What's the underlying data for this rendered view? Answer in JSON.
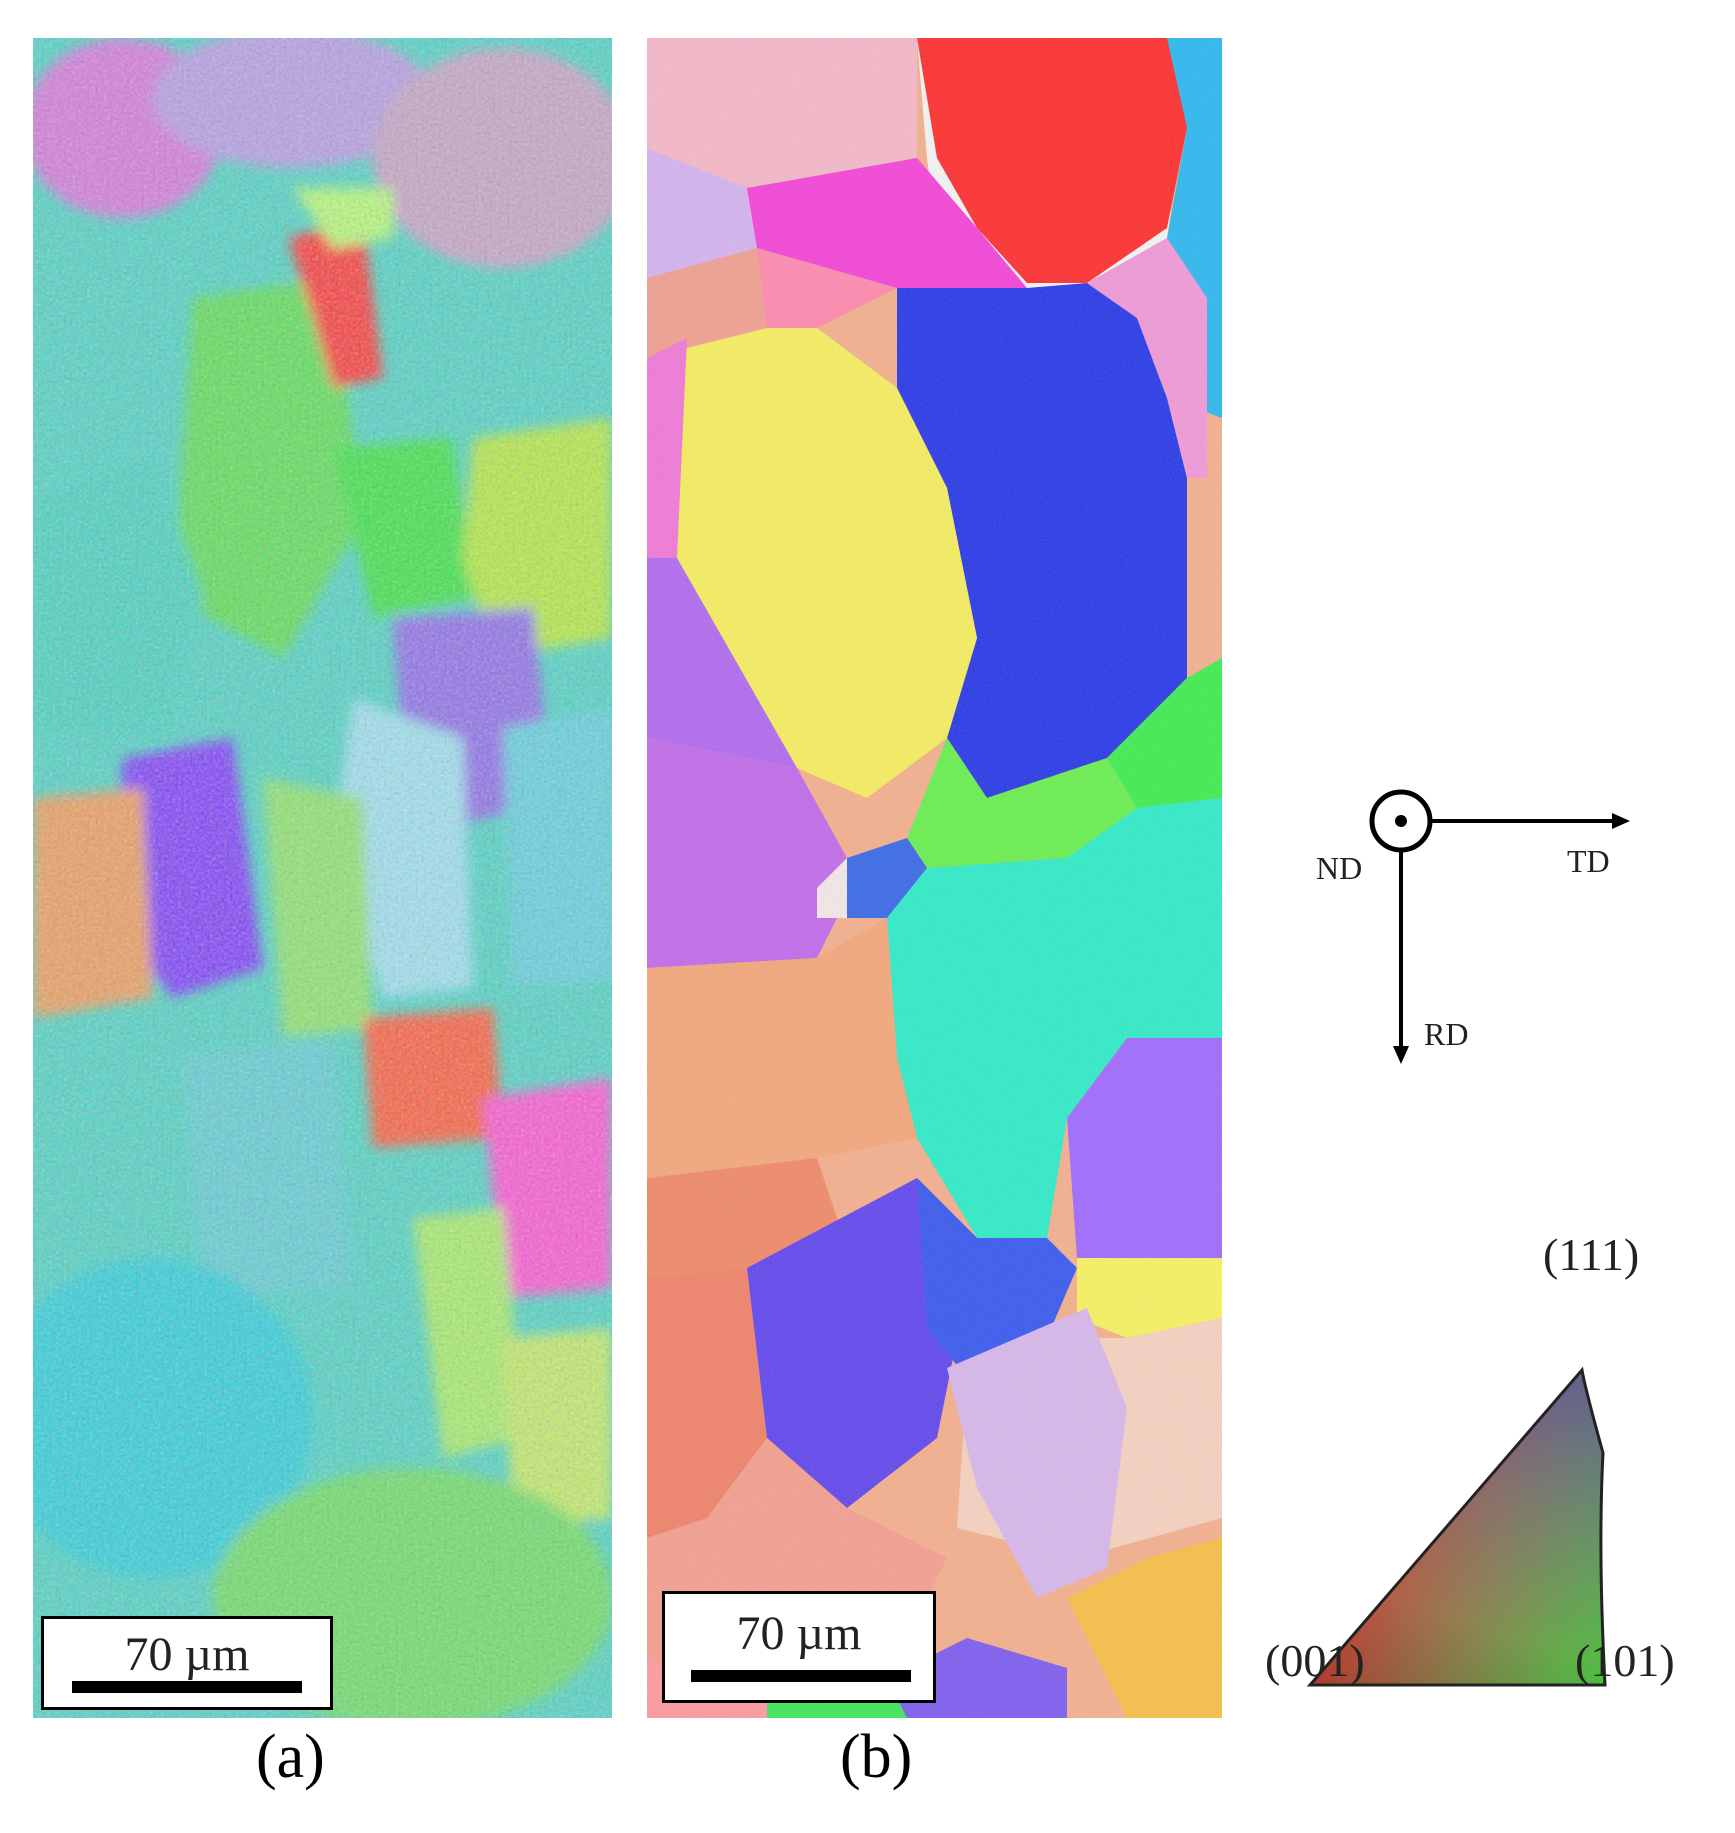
{
  "panels": [
    {
      "id": "a",
      "label": "(a)",
      "scale_bar": "70 µm"
    },
    {
      "id": "b",
      "label": "(b)",
      "scale_bar": "70 µm"
    }
  ],
  "axes": {
    "nd": "ND",
    "td": "TD",
    "rd": "RD"
  },
  "ipf_legend": {
    "corner_111": "(111)",
    "corner_001": "(001)",
    "corner_101": "(101)"
  },
  "colors": {
    "red_001": "#ff2020",
    "green_101": "#20ee20",
    "blue_111": "#3030ff"
  }
}
